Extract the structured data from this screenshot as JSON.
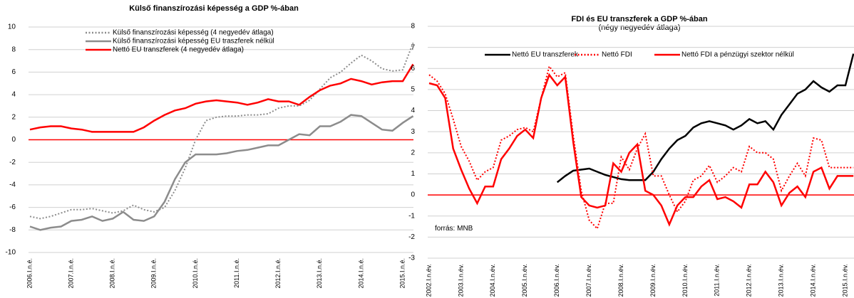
{
  "chart_data": [
    {
      "type": "line",
      "title": "Külső finanszírozási képesség a GDP %-ában",
      "categories": [
        "2006.I.n.é.",
        null,
        null,
        null,
        "2007.I.n.é.",
        null,
        null,
        null,
        "2008.I.n.é.",
        null,
        null,
        null,
        "2009.I.n.é.",
        null,
        null,
        null,
        "2010.I.n.é.",
        null,
        null,
        null,
        "2011.I.n.é.",
        null,
        null,
        null,
        "2012.I.n.é.",
        null,
        null,
        null,
        "2013.I.n.é.",
        null,
        null,
        null,
        "2014.I.n.é.",
        null,
        null,
        null,
        "2015.I.n.é.",
        null
      ],
      "ylim": [
        -10,
        10
      ],
      "yticks": [
        -10,
        -8,
        -6,
        -4,
        -2,
        0,
        2,
        4,
        6,
        8,
        10
      ],
      "grid": true,
      "zero_line_color": "#ff0000",
      "legend": "top-left",
      "series": [
        {
          "name": "Külső finanszírozási képesség (4 negyedév átlaga)",
          "color": "#8c8c8c",
          "style": "dotted",
          "values": [
            -6.8,
            -7.0,
            -6.8,
            -6.5,
            -6.2,
            -6.2,
            -6.1,
            -6.3,
            -6.5,
            -6.3,
            -5.8,
            -6.2,
            -6.4,
            -6.0,
            -4.5,
            -2.5,
            0.0,
            1.7,
            2.0,
            2.1,
            2.1,
            2.2,
            2.2,
            2.3,
            2.8,
            3.0,
            3.0,
            3.5,
            4.5,
            5.5,
            6.0,
            6.8,
            7.5,
            7.0,
            6.3,
            6.1,
            6.2,
            8.6
          ]
        },
        {
          "name": "Külső finanszírozási képesség EU traszferek nélkül",
          "color": "#8c8c8c",
          "style": "solid",
          "values": [
            -7.7,
            -8.0,
            -7.8,
            -7.7,
            -7.2,
            -7.1,
            -6.8,
            -7.2,
            -7.0,
            -6.4,
            -7.1,
            -7.2,
            -6.8,
            -5.5,
            -3.5,
            -2.0,
            -1.3,
            -1.3,
            -1.3,
            -1.2,
            -1.0,
            -0.9,
            -0.7,
            -0.5,
            -0.5,
            0.0,
            0.5,
            0.4,
            1.2,
            1.2,
            1.6,
            2.2,
            2.1,
            1.5,
            0.9,
            0.8,
            1.5,
            2.1
          ]
        },
        {
          "name": "Nettó EU transzferek (4 negyedév átlaga)",
          "color": "#ff0000",
          "style": "solid",
          "values": [
            0.9,
            1.1,
            1.2,
            1.2,
            1.0,
            0.9,
            0.7,
            0.7,
            0.7,
            0.7,
            0.7,
            1.1,
            1.7,
            2.2,
            2.6,
            2.8,
            3.2,
            3.4,
            3.5,
            3.4,
            3.3,
            3.1,
            3.3,
            3.6,
            3.4,
            3.4,
            3.1,
            3.8,
            4.4,
            4.8,
            5.0,
            5.4,
            5.2,
            4.9,
            5.1,
            5.2,
            5.2,
            6.7
          ]
        }
      ]
    },
    {
      "type": "line",
      "title": "FDI és EU transzferek a GDP %-ában",
      "subtitle": "(négy negyedév átlaga)",
      "annotation": "forrás: MNB",
      "categories": [
        "2002.I.n.év.",
        null,
        null,
        null,
        "2003.I.n.év.",
        null,
        null,
        null,
        "2004.I.n.év.",
        null,
        null,
        null,
        "2005.I.n.év.",
        null,
        null,
        null,
        "2006.I.n.év.",
        null,
        null,
        null,
        "2007.I.n.év.",
        null,
        null,
        null,
        "2008.I.n.év.",
        null,
        null,
        null,
        "2009.I.n.év.",
        null,
        null,
        null,
        "2010.I.n.év.",
        null,
        null,
        null,
        "2011.I.n.év.",
        null,
        null,
        null,
        "2012.I.n.év.",
        null,
        null,
        null,
        "2013.I.n.év.",
        null,
        null,
        null,
        "2014.I.n.év.",
        null,
        null,
        null,
        "2015.I.n.év.",
        null
      ],
      "ylim": [
        -3,
        8
      ],
      "yticks": [
        -3,
        -2,
        -1,
        0,
        1,
        2,
        3,
        4,
        5,
        6,
        7,
        8
      ],
      "grid": true,
      "zero_line_color": "#ff0000",
      "legend": "top",
      "series": [
        {
          "name": "Nettó EU transzferek",
          "color": "#000000",
          "style": "solid",
          "values": [
            null,
            null,
            null,
            null,
            null,
            null,
            null,
            null,
            null,
            null,
            null,
            null,
            null,
            null,
            null,
            null,
            0.6,
            0.9,
            1.15,
            1.2,
            1.25,
            1.1,
            0.95,
            0.85,
            0.75,
            0.7,
            0.7,
            0.7,
            1.1,
            1.7,
            2.2,
            2.6,
            2.8,
            3.2,
            3.4,
            3.5,
            3.4,
            3.3,
            3.1,
            3.3,
            3.6,
            3.4,
            3.5,
            3.1,
            3.8,
            4.3,
            4.8,
            5.0,
            5.4,
            5.1,
            4.9,
            5.2,
            5.2,
            6.7
          ]
        },
        {
          "name": "Nettó FDI",
          "color": "#ff0000",
          "style": "dotted",
          "values": [
            5.7,
            5.4,
            4.8,
            3.6,
            2.3,
            1.6,
            0.7,
            1.1,
            1.3,
            2.6,
            2.8,
            3.1,
            3.2,
            3.0,
            4.6,
            6.1,
            5.6,
            5.8,
            2.8,
            0.2,
            -1.2,
            -1.6,
            -0.4,
            -0.4,
            1.8,
            1.2,
            2.2,
            2.9,
            0.9,
            0.9,
            0.0,
            -0.8,
            -0.3,
            0.7,
            0.9,
            1.4,
            0.6,
            0.9,
            1.3,
            1.1,
            2.3,
            2.0,
            2.0,
            1.7,
            0.2,
            0.9,
            1.5,
            0.9,
            2.7,
            2.6,
            1.3,
            1.3,
            1.3,
            1.3
          ]
        },
        {
          "name": "Nettó FDI a pénzügyi szektor nélkül",
          "color": "#ff0000",
          "style": "solid",
          "values": [
            5.3,
            5.2,
            4.6,
            2.2,
            1.2,
            0.3,
            -0.4,
            0.4,
            0.4,
            1.7,
            2.2,
            2.8,
            3.1,
            2.7,
            4.6,
            5.7,
            5.2,
            5.6,
            2.5,
            -0.1,
            -0.5,
            -0.6,
            -0.5,
            1.5,
            1.1,
            2.0,
            2.4,
            0.2,
            0.0,
            -0.5,
            -1.4,
            -0.5,
            -0.1,
            -0.1,
            0.4,
            0.7,
            -0.2,
            -0.1,
            -0.3,
            -0.6,
            0.5,
            0.5,
            1.1,
            0.6,
            -0.5,
            0.1,
            0.4,
            -0.1,
            1.1,
            1.3,
            0.3,
            0.9,
            0.9,
            0.9
          ]
        }
      ]
    }
  ]
}
